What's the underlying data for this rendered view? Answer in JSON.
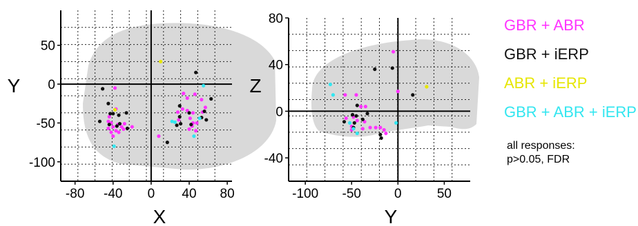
{
  "legend": {
    "entries": [
      {
        "label": "GBR + ABR",
        "color": "#ff33ff"
      },
      {
        "label": "GBR + iERP",
        "color": "#111111"
      },
      {
        "label": "ABR + iERP",
        "color": "#e6e600"
      },
      {
        "label": "GBR + ABR + iERP",
        "color": "#33e6f0"
      }
    ],
    "note_line1": "all responses:",
    "note_line2": "p>0.05, FDR"
  },
  "chart_data": [
    {
      "type": "scatter",
      "view": "axial",
      "xlabel": "X",
      "ylabel": "Y",
      "xlim": [
        -95,
        85
      ],
      "ylim": [
        -125,
        95
      ],
      "xticks": [
        -80,
        -40,
        0,
        40,
        80
      ],
      "yticks": [
        50,
        0,
        -50,
        -100
      ],
      "grid": true,
      "series": [
        {
          "color": "#ff33ff",
          "points": [
            [
              -38,
              -5
            ],
            [
              -37,
              -32
            ],
            [
              -44,
              -42
            ],
            [
              -45,
              -48
            ],
            [
              -42,
              -50
            ],
            [
              -40,
              -55
            ],
            [
              -35,
              -52
            ],
            [
              -31,
              -55
            ],
            [
              -29,
              -58
            ],
            [
              -37,
              -60
            ],
            [
              -34,
              -62
            ],
            [
              -42,
              -62
            ],
            [
              -45,
              -57
            ],
            [
              -40,
              -67
            ],
            [
              -28,
              -51
            ],
            [
              -20,
              -55
            ],
            [
              34,
              -12
            ],
            [
              38,
              -18
            ],
            [
              46,
              -13
            ],
            [
              53,
              -20
            ],
            [
              33,
              -32
            ],
            [
              38,
              -34
            ],
            [
              28,
              -36
            ],
            [
              44,
              -37
            ],
            [
              54,
              -36
            ],
            [
              57,
              -30
            ],
            [
              29,
              -46
            ],
            [
              41,
              -44
            ],
            [
              44,
              -50
            ],
            [
              48,
              -50
            ],
            [
              43,
              -54
            ],
            [
              40,
              -58
            ],
            [
              47,
              -60
            ],
            [
              8,
              -67
            ]
          ]
        },
        {
          "color": "#111111",
          "points": [
            [
              -51,
              -6
            ],
            [
              -54,
              -48
            ],
            [
              -45,
              -25
            ],
            [
              -43,
              -38
            ],
            [
              -40,
              -38
            ],
            [
              -34,
              -40
            ],
            [
              -26,
              -37
            ],
            [
              -44,
              -52
            ],
            [
              -36,
              -54
            ],
            [
              -33,
              -51
            ],
            [
              -25,
              -57
            ],
            [
              56,
              -35
            ],
            [
              63,
              -19
            ],
            [
              47,
              15
            ],
            [
              30,
              -28
            ],
            [
              30,
              -42
            ],
            [
              40,
              -37
            ],
            [
              31,
              -51
            ],
            [
              27,
              -53
            ],
            [
              42,
              -52
            ],
            [
              53,
              -43
            ],
            [
              17,
              -75
            ],
            [
              58,
              -46
            ]
          ]
        },
        {
          "color": "#e6e600",
          "points": [
            [
              10,
              29
            ],
            [
              -38,
              -33
            ]
          ]
        },
        {
          "color": "#33e6f0",
          "points": [
            [
              55,
              -2
            ],
            [
              22,
              -48
            ],
            [
              25,
              -49
            ],
            [
              51,
              -44
            ],
            [
              45,
              -67
            ],
            [
              -39,
              -80
            ]
          ]
        }
      ]
    },
    {
      "type": "scatter",
      "view": "sagittal",
      "xlabel": "Y",
      "ylabel": "Z",
      "xlim": [
        -118,
        78
      ],
      "ylim": [
        -60,
        80
      ],
      "xticks": [
        -100,
        -50,
        0,
        50
      ],
      "yticks": [
        80,
        40,
        0,
        -40
      ],
      "grid": true,
      "series": [
        {
          "color": "#ff33ff",
          "points": [
            [
              -5,
              51
            ],
            [
              0,
              17
            ],
            [
              -57,
              14
            ],
            [
              -45,
              14
            ],
            [
              -40,
              4
            ],
            [
              -35,
              4
            ],
            [
              -56,
              -6
            ],
            [
              -48,
              -5
            ],
            [
              -44,
              -8
            ],
            [
              -36,
              -9
            ],
            [
              -50,
              -13
            ],
            [
              -30,
              -14
            ],
            [
              -24,
              -14
            ],
            [
              -19,
              -14
            ],
            [
              -15,
              -16
            ],
            [
              -13,
              -19
            ],
            [
              -38,
              -15
            ],
            [
              -50,
              -16
            ]
          ]
        },
        {
          "color": "#111111",
          "points": [
            [
              -25,
              36
            ],
            [
              -6,
              37
            ],
            [
              16,
              14
            ],
            [
              -49,
              -3
            ],
            [
              -45,
              -4
            ],
            [
              -44,
              5
            ],
            [
              -33,
              -2
            ],
            [
              -38,
              -7
            ],
            [
              -58,
              -9
            ],
            [
              -47,
              -10
            ],
            [
              -48,
              -14
            ],
            [
              -19,
              -20
            ],
            [
              -18,
              -23
            ]
          ]
        },
        {
          "color": "#e6e600",
          "points": [
            [
              31,
              21
            ]
          ]
        },
        {
          "color": "#33e6f0",
          "points": [
            [
              -73,
              23
            ],
            [
              -70,
              14
            ],
            [
              -52,
              -10
            ],
            [
              -48,
              -15
            ],
            [
              -44,
              -19
            ],
            [
              -2,
              -10
            ]
          ]
        }
      ]
    }
  ]
}
